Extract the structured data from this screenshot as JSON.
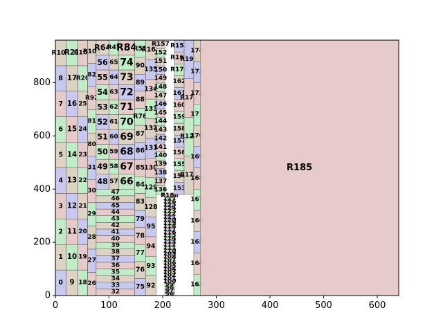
{
  "chart_data": {
    "type": "treemap",
    "title": "",
    "xlabel": "",
    "ylabel": "",
    "xlim": [
      0,
      640
    ],
    "ylim": [
      0,
      960
    ],
    "xticks": [
      "0",
      "100",
      "200",
      "300",
      "400",
      "500",
      "600"
    ],
    "yticks": [
      "0",
      "200",
      "400",
      "600",
      "800"
    ],
    "grid": false,
    "colors": [
      "#c6c6ee",
      "#dcd0c2",
      "#bfeac4",
      "#e6c8c8"
    ],
    "columns": [
      {
        "x0": 0,
        "x1": 20,
        "labels": [
          "0",
          "1",
          "2",
          "3",
          "4",
          "5",
          "6",
          "7",
          "8",
          "R101"
        ]
      },
      {
        "x0": 20,
        "x1": 42,
        "labels": [
          "9",
          "10",
          "11",
          "12",
          "13",
          "14",
          "15",
          "16",
          "17",
          "R21"
        ]
      },
      {
        "x0": 42,
        "x1": 60,
        "labels": [
          "18",
          "19",
          "20",
          "21",
          "22",
          "23",
          "24",
          "25",
          "R20",
          "R103"
        ]
      },
      {
        "x0": 60,
        "x1": 76,
        "labels": [
          "26",
          "27",
          "28",
          "29",
          "30",
          "31",
          "80",
          "81",
          "R92",
          "82",
          "R104"
        ]
      },
      {
        "x0": 76,
        "x1": 100,
        "labels": [
          "48",
          "49",
          "50",
          "51",
          "52",
          "53",
          "54",
          "55",
          "56",
          "R64"
        ]
      },
      {
        "x0": 100,
        "x1": 118,
        "labels": [
          "57",
          "58",
          "59",
          "60",
          "61",
          "62",
          "63",
          "64",
          "65",
          "R47"
        ]
      },
      {
        "x0": 118,
        "x1": 148,
        "labels": [
          "66",
          "67",
          "68",
          "69",
          "70",
          "71",
          "72",
          "73",
          "74",
          "R84"
        ]
      },
      {
        "x0": 76,
        "x1": 148,
        "labels": [
          "32",
          "33",
          "34",
          "35",
          "36",
          "37",
          "38",
          "39",
          "40",
          "41",
          "42",
          "43",
          "44",
          "45",
          "46",
          "47"
        ]
      },
      {
        "x0": 148,
        "x1": 168,
        "labels": [
          "75",
          "76",
          "77",
          "78",
          "79",
          "83",
          "84",
          "85",
          "86",
          "87",
          "R76",
          "88",
          "89",
          "90",
          "R51"
        ]
      },
      {
        "x0": 168,
        "x1": 188,
        "labels": [
          "92",
          "93",
          "94",
          "95",
          "128",
          "129",
          "130",
          "131",
          "132",
          "133",
          "134",
          "135",
          "R161"
        ]
      },
      {
        "x0": 188,
        "x1": 204,
        "labels": [
          "136",
          "137",
          "138",
          "139",
          "140",
          "141",
          "142",
          "143",
          "144",
          "145",
          "146",
          "147",
          "148",
          "149",
          "150",
          "151",
          "152",
          "R157"
        ]
      },
      {
        "x0": 204,
        "x1": 222,
        "labels": [
          "96",
          "97",
          "98",
          "99",
          "100",
          "101",
          "102",
          "103",
          "104",
          "105",
          "106",
          "107",
          "108",
          "109",
          "110",
          "111",
          "112",
          "113",
          "114",
          "115",
          "116",
          "117",
          "118",
          "119",
          "120",
          "121",
          "122",
          "123",
          "124",
          "125",
          "126",
          "127",
          "R186"
        ]
      },
      {
        "x0": 222,
        "x1": 240,
        "labels": [
          "153",
          "154",
          "155",
          "156",
          "157",
          "158",
          "159",
          "160",
          "161",
          "162",
          "R176",
          "R162",
          "R152"
        ]
      },
      {
        "x0": 240,
        "x1": 258,
        "labels": [
          "R179",
          "R127",
          "R172",
          "R196"
        ]
      },
      {
        "x0": 258,
        "x1": 270,
        "labels": [
          "163",
          "164",
          "165",
          "166",
          "167",
          "168",
          "169",
          "170",
          "171",
          "172",
          "173",
          "174"
        ]
      },
      {
        "x0": 270,
        "x1": 640,
        "labels": [
          "R185"
        ]
      }
    ]
  }
}
